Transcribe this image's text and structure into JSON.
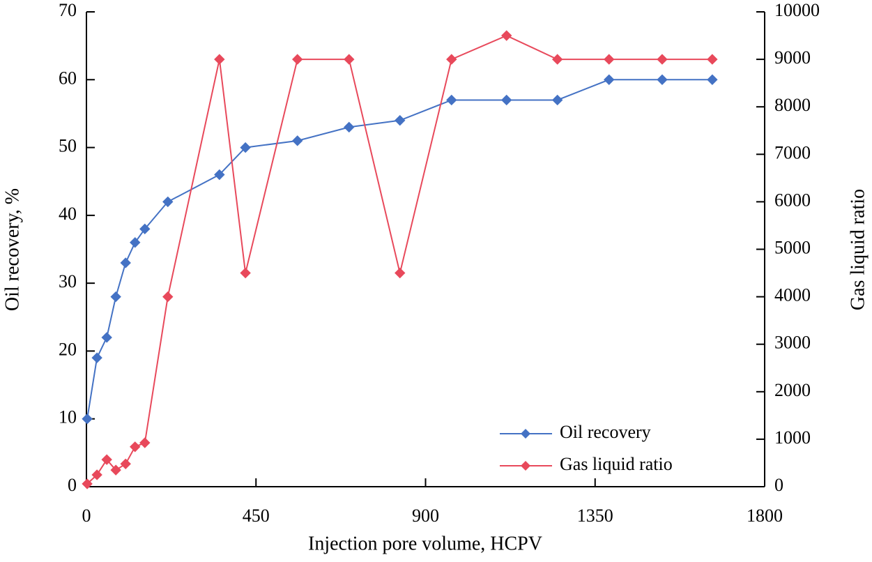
{
  "chart_data": {
    "type": "line",
    "x_label": "Injection pore volume, HCPV",
    "y_label": "Oil recovery, %",
    "y2_label": "Gas liquid ratio",
    "x": [
      2,
      28,
      54,
      78,
      104,
      129,
      155,
      216,
      353,
      422,
      560,
      697,
      832,
      969,
      1115,
      1250,
      1387,
      1528,
      1661
    ],
    "series": [
      {
        "name": "Oil recovery",
        "color": "#4472c4",
        "axis": "y",
        "values": [
          10,
          19,
          22,
          28,
          33,
          36,
          38,
          42,
          46,
          50,
          51,
          53,
          54,
          57,
          57,
          57,
          60,
          60,
          60
        ]
      },
      {
        "name": "Gas liquid ratio",
        "color": "#e8495b",
        "axis": "y2",
        "values": [
          60,
          250,
          570,
          350,
          480,
          840,
          925,
          4000,
          9000,
          4500,
          9000,
          9000,
          4500,
          9000,
          9500,
          9000,
          9000,
          9000,
          9000
        ]
      }
    ],
    "xlim": [
      0,
      1800
    ],
    "xticks": [
      0,
      450,
      900,
      1350,
      1800
    ],
    "ylim": [
      0,
      70
    ],
    "yticks": [
      0,
      10,
      20,
      30,
      40,
      50,
      60,
      70
    ],
    "y2lim": [
      0,
      10000
    ],
    "y2ticks": [
      0,
      1000,
      2000,
      3000,
      4000,
      5000,
      6000,
      7000,
      8000,
      9000,
      10000
    ],
    "legend": "lower right"
  }
}
